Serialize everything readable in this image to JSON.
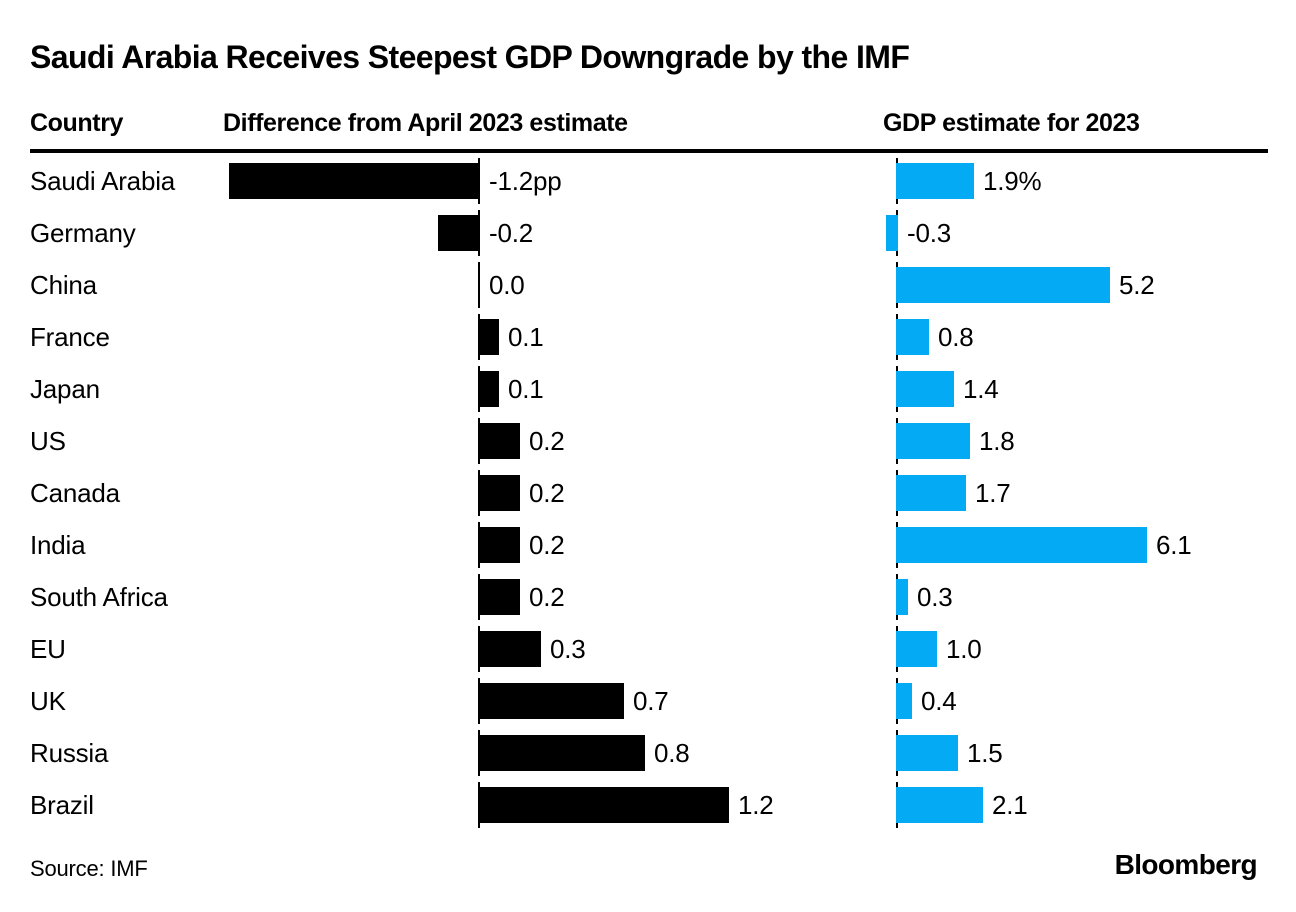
{
  "title": "Saudi Arabia Receives Steepest GDP Downgrade by the IMF",
  "headers": {
    "country": "Country",
    "difference": "Difference from April 2023 estimate",
    "gdp": "GDP estimate for 2023"
  },
  "source": "Source: IMF",
  "logo": "Bloomberg",
  "colors": {
    "diff_bar": "#000000",
    "gdp_bar": "#05AAF5",
    "axis": "#000000",
    "text": "#000000"
  },
  "chart_data": {
    "type": "bar",
    "orientation": "horizontal",
    "title": "Saudi Arabia Receives Steepest GDP Downgrade by the IMF",
    "categories": [
      "Saudi Arabia",
      "Germany",
      "China",
      "France",
      "Japan",
      "US",
      "Canada",
      "India",
      "South Africa",
      "EU",
      "UK",
      "Russia",
      "Brazil"
    ],
    "series": [
      {
        "name": "Difference from April 2023 estimate",
        "unit": "pp",
        "values": [
          -1.2,
          -0.2,
          0.0,
          0.1,
          0.1,
          0.2,
          0.2,
          0.2,
          0.2,
          0.3,
          0.7,
          0.8,
          1.2
        ],
        "labels": [
          "-1.2pp",
          "-0.2",
          "0.0",
          "0.1",
          "0.1",
          "0.2",
          "0.2",
          "0.2",
          "0.2",
          "0.3",
          "0.7",
          "0.8",
          "1.2"
        ],
        "color": "#000000",
        "xlim": [
          -1.2,
          1.2
        ]
      },
      {
        "name": "GDP estimate for 2023",
        "unit": "%",
        "values": [
          1.9,
          -0.3,
          5.2,
          0.8,
          1.4,
          1.8,
          1.7,
          6.1,
          0.3,
          1.0,
          0.4,
          1.5,
          2.1
        ],
        "labels": [
          "1.9%",
          "-0.3",
          "5.2",
          "0.8",
          "1.4",
          "1.8",
          "1.7",
          "6.1",
          "0.3",
          "1.0",
          "0.4",
          "1.5",
          "2.1"
        ],
        "color": "#05AAF5",
        "xlim": [
          -0.3,
          6.1
        ]
      }
    ],
    "legend": "none",
    "grid": false,
    "value_labels": true
  }
}
